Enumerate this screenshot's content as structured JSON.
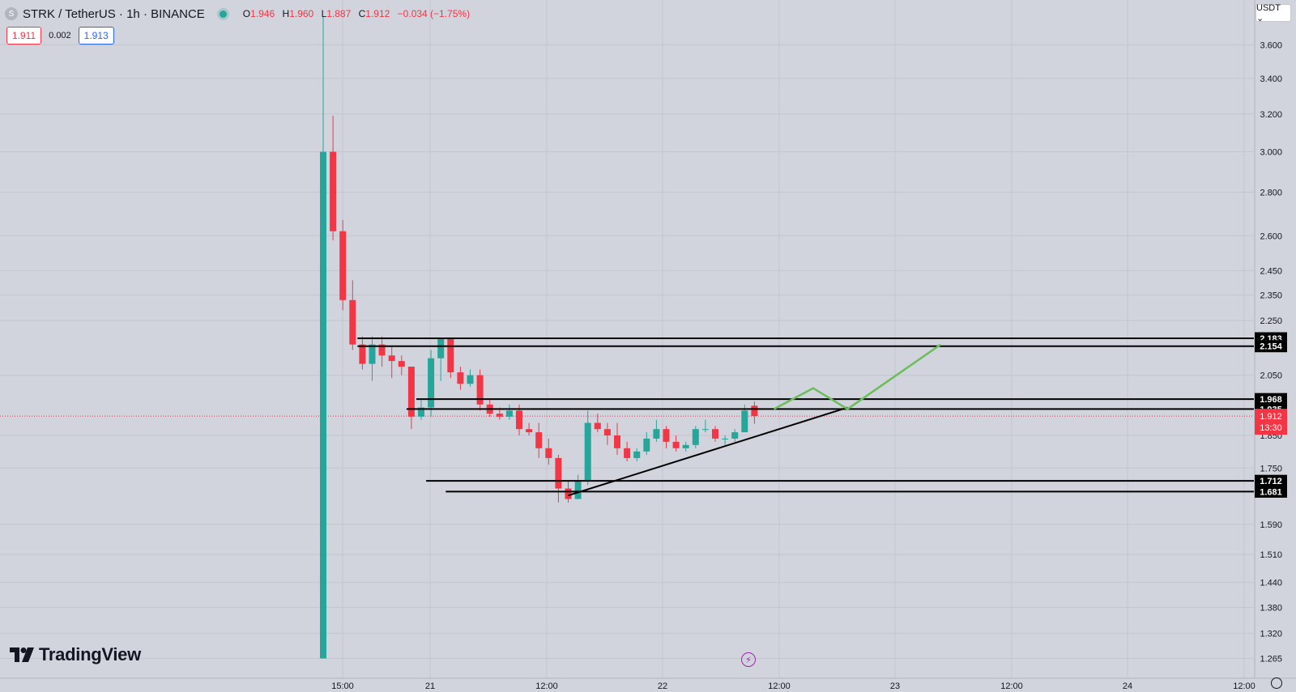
{
  "header": {
    "symbol_logo": "S",
    "title": "STRK / TetherUS · 1h · BINANCE",
    "ohlc": {
      "o_label": "O",
      "o": "1.946",
      "h_label": "H",
      "h": "1.960",
      "l_label": "L",
      "l": "1.887",
      "c_label": "C",
      "c": "1.912",
      "change": "−0.034 (−1.75%)"
    }
  },
  "bid_ask": {
    "bid": "1.911",
    "spread": "0.002",
    "ask": "1.913"
  },
  "currency_selector": {
    "label": "USDT ⌄"
  },
  "logo": {
    "text": "TradingView"
  },
  "icons": {
    "flash": "flash-icon",
    "settings": "gear-icon"
  },
  "colors": {
    "background": "#d1d4dc",
    "up": "#26a69a",
    "down": "#f23645",
    "projection": "#6abf5b",
    "level_line": "#000000"
  },
  "chart_data": {
    "type": "candlestick",
    "scale": "log",
    "ylim": [
      1.24,
      3.78
    ],
    "price_ticks": [
      "3.600",
      "3.400",
      "3.200",
      "3.000",
      "2.800",
      "2.600",
      "2.450",
      "2.350",
      "2.250",
      "2.050",
      "1.850",
      "1.750",
      "1.590",
      "1.510",
      "1.440",
      "1.380",
      "1.320",
      "1.265"
    ],
    "time_labels": [
      "15:00",
      "21",
      "12:00",
      "22",
      "12:00",
      "23",
      "12:00",
      "24",
      "12:00"
    ],
    "current_price": {
      "value": 1.912,
      "label": "1.912",
      "countdown": "13:30"
    },
    "candles": [
      {
        "o": 1.265,
        "h": 3.78,
        "l": 1.265,
        "c": 3.0
      },
      {
        "o": 3.0,
        "h": 3.19,
        "l": 2.58,
        "c": 2.62
      },
      {
        "o": 2.62,
        "h": 2.67,
        "l": 2.29,
        "c": 2.33
      },
      {
        "o": 2.33,
        "h": 2.41,
        "l": 2.14,
        "c": 2.16
      },
      {
        "o": 2.16,
        "h": 2.19,
        "l": 2.07,
        "c": 2.09
      },
      {
        "o": 2.09,
        "h": 2.19,
        "l": 2.03,
        "c": 2.16
      },
      {
        "o": 2.16,
        "h": 2.19,
        "l": 2.08,
        "c": 2.12
      },
      {
        "o": 2.12,
        "h": 2.15,
        "l": 2.04,
        "c": 2.1
      },
      {
        "o": 2.1,
        "h": 2.12,
        "l": 2.05,
        "c": 2.08
      },
      {
        "o": 2.08,
        "h": 2.08,
        "l": 1.87,
        "c": 1.91
      },
      {
        "o": 1.91,
        "h": 1.97,
        "l": 1.9,
        "c": 1.94
      },
      {
        "o": 1.94,
        "h": 2.14,
        "l": 1.91,
        "c": 2.11
      },
      {
        "o": 2.11,
        "h": 2.18,
        "l": 2.03,
        "c": 2.18
      },
      {
        "o": 2.18,
        "h": 2.18,
        "l": 2.04,
        "c": 2.06
      },
      {
        "o": 2.06,
        "h": 2.08,
        "l": 2.0,
        "c": 2.02
      },
      {
        "o": 2.02,
        "h": 2.07,
        "l": 2.01,
        "c": 2.05
      },
      {
        "o": 2.05,
        "h": 2.07,
        "l": 1.93,
        "c": 1.95
      },
      {
        "o": 1.95,
        "h": 1.97,
        "l": 1.91,
        "c": 1.92
      },
      {
        "o": 1.92,
        "h": 1.94,
        "l": 1.9,
        "c": 1.91
      },
      {
        "o": 1.91,
        "h": 1.95,
        "l": 1.9,
        "c": 1.93
      },
      {
        "o": 1.93,
        "h": 1.95,
        "l": 1.85,
        "c": 1.87
      },
      {
        "o": 1.87,
        "h": 1.89,
        "l": 1.85,
        "c": 1.86
      },
      {
        "o": 1.86,
        "h": 1.89,
        "l": 1.78,
        "c": 1.81
      },
      {
        "o": 1.81,
        "h": 1.84,
        "l": 1.76,
        "c": 1.78
      },
      {
        "o": 1.78,
        "h": 1.79,
        "l": 1.65,
        "c": 1.69
      },
      {
        "o": 1.69,
        "h": 1.71,
        "l": 1.65,
        "c": 1.66
      },
      {
        "o": 1.66,
        "h": 1.73,
        "l": 1.66,
        "c": 1.71
      },
      {
        "o": 1.71,
        "h": 1.93,
        "l": 1.7,
        "c": 1.89
      },
      {
        "o": 1.89,
        "h": 1.92,
        "l": 1.86,
        "c": 1.87
      },
      {
        "o": 1.87,
        "h": 1.89,
        "l": 1.82,
        "c": 1.85
      },
      {
        "o": 1.85,
        "h": 1.89,
        "l": 1.79,
        "c": 1.81
      },
      {
        "o": 1.81,
        "h": 1.83,
        "l": 1.77,
        "c": 1.78
      },
      {
        "o": 1.78,
        "h": 1.81,
        "l": 1.77,
        "c": 1.8
      },
      {
        "o": 1.8,
        "h": 1.86,
        "l": 1.79,
        "c": 1.84
      },
      {
        "o": 1.84,
        "h": 1.9,
        "l": 1.83,
        "c": 1.87
      },
      {
        "o": 1.87,
        "h": 1.88,
        "l": 1.81,
        "c": 1.83
      },
      {
        "o": 1.83,
        "h": 1.85,
        "l": 1.8,
        "c": 1.81
      },
      {
        "o": 1.81,
        "h": 1.83,
        "l": 1.8,
        "c": 1.82
      },
      {
        "o": 1.82,
        "h": 1.88,
        "l": 1.81,
        "c": 1.87
      },
      {
        "o": 1.87,
        "h": 1.9,
        "l": 1.86,
        "c": 1.87
      },
      {
        "o": 1.87,
        "h": 1.88,
        "l": 1.83,
        "c": 1.84
      },
      {
        "o": 1.84,
        "h": 1.85,
        "l": 1.82,
        "c": 1.84
      },
      {
        "o": 1.84,
        "h": 1.87,
        "l": 1.83,
        "c": 1.86
      },
      {
        "o": 1.86,
        "h": 1.95,
        "l": 1.86,
        "c": 1.93
      },
      {
        "o": 1.946,
        "h": 1.96,
        "l": 1.887,
        "c": 1.912
      }
    ],
    "levels": [
      {
        "value": 2.183,
        "label": "2.183",
        "from_candle": 4
      },
      {
        "value": 2.154,
        "label": "2.154",
        "from_candle": 4
      },
      {
        "value": 1.968,
        "label": "1.968",
        "from_candle": 10
      },
      {
        "value": 1.935,
        "label": "1.935",
        "from_candle": 9
      },
      {
        "value": 1.712,
        "label": "1.712",
        "from_candle": 11
      },
      {
        "value": 1.681,
        "label": "1.681",
        "from_candle": 13
      }
    ],
    "trendline": [
      {
        "candle": 25,
        "price": 1.67
      },
      {
        "candle": 53.5,
        "price": 1.94
      }
    ],
    "projection": [
      {
        "candle": 46,
        "price": 1.935
      },
      {
        "candle": 50,
        "price": 2.005
      },
      {
        "candle": 53.5,
        "price": 1.935
      },
      {
        "candle": 63,
        "price": 2.16
      }
    ]
  }
}
